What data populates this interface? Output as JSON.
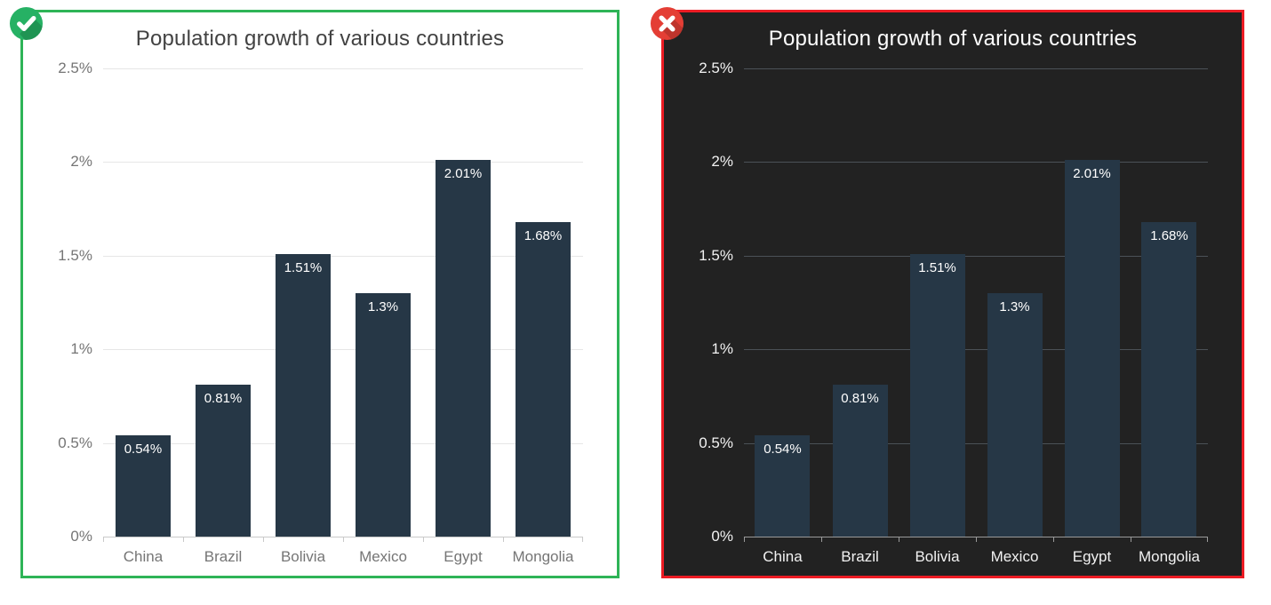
{
  "page": {
    "background": "#ffffff"
  },
  "cards": [
    {
      "verdict": "correct",
      "icon": "check-icon",
      "icon_circle": "#26b164",
      "icon_glyph": "#ffffff",
      "border": "#2eb457"
    },
    {
      "verdict": "incorrect",
      "icon": "cross-icon",
      "icon_circle": "#e43e35",
      "icon_glyph": "#ffffff",
      "border": "#ec1c24"
    }
  ],
  "chart_data": [
    {
      "type": "bar",
      "title": "Population growth of various countries",
      "categories": [
        "China",
        "Brazil",
        "Bolivia",
        "Mexico",
        "Egypt",
        "Mongolia"
      ],
      "values": [
        0.54,
        0.81,
        1.51,
        1.3,
        2.01,
        1.68
      ],
      "value_labels": [
        "0.54%",
        "0.81%",
        "1.51%",
        "1.3%",
        "2.01%",
        "1.68%"
      ],
      "xlabel": "",
      "ylabel": "",
      "ylim": [
        0,
        2.5
      ],
      "grid": true,
      "legend": false,
      "yticks": [
        {
          "value": 0,
          "label": "0%"
        },
        {
          "value": 0.5,
          "label": "0.5%"
        },
        {
          "value": 1,
          "label": "1%"
        },
        {
          "value": 1.5,
          "label": "1.5%"
        },
        {
          "value": 2,
          "label": "2%"
        },
        {
          "value": 2.5,
          "label": "2.5%"
        }
      ],
      "status_icon": {
        "name": "check-icon",
        "circle": "#26b164",
        "glyph": "#ffffff"
      },
      "theme": {
        "background": "#ffffff",
        "border": "#2eb457",
        "title-color": "#424242",
        "tick-color": "#757575",
        "grid-color": "#e6e6e6",
        "axis-color": "#c9c9c9",
        "bar-color": "#263746",
        "bar-label-color": "#ffffff"
      }
    },
    {
      "type": "bar",
      "title": "Population growth of various countries",
      "categories": [
        "China",
        "Brazil",
        "Bolivia",
        "Mexico",
        "Egypt",
        "Mongolia"
      ],
      "values": [
        0.54,
        0.81,
        1.51,
        1.3,
        2.01,
        1.68
      ],
      "value_labels": [
        "0.54%",
        "0.81%",
        "1.51%",
        "1.3%",
        "2.01%",
        "1.68%"
      ],
      "xlabel": "",
      "ylabel": "",
      "ylim": [
        0,
        2.5
      ],
      "grid": true,
      "legend": false,
      "yticks": [
        {
          "value": 0,
          "label": "0%"
        },
        {
          "value": 0.5,
          "label": "0.5%"
        },
        {
          "value": 1,
          "label": "1%"
        },
        {
          "value": 1.5,
          "label": "1.5%"
        },
        {
          "value": 2,
          "label": "2%"
        },
        {
          "value": 2.5,
          "label": "2.5%"
        }
      ],
      "status_icon": {
        "name": "cross-icon",
        "circle": "#e43e35",
        "glyph": "#ffffff"
      },
      "theme": {
        "background": "#222222",
        "border": "#ec1c24",
        "title-color": "#ffffff",
        "tick-color": "#f2f2f2",
        "grid-color": "#4b5157",
        "axis-color": "#9a9a9a",
        "bar-color": "#263746",
        "bar-label-color": "#ffffff"
      }
    }
  ]
}
